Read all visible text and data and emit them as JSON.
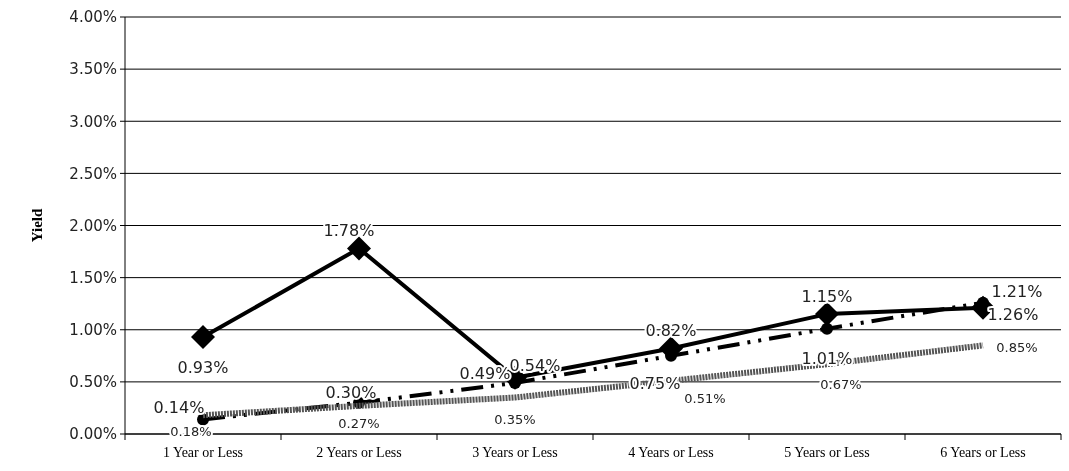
{
  "chart_data": {
    "type": "line",
    "ylabel": "Yield",
    "categories": [
      "1 Year or Less",
      "2 Years or Less",
      "3 Years or Less",
      "4 Years or Less",
      "5 Years or Less",
      "6 Years or Less"
    ],
    "series": [
      {
        "color": "#000000",
        "marker": "diamond",
        "line_style": "solid",
        "values": [
          0.93,
          1.78,
          0.54,
          0.82,
          1.15,
          1.21
        ],
        "value_labels": [
          "0.93%",
          "1.78%",
          "0.54%",
          "0.82%",
          "1.15%",
          "1.21%"
        ]
      },
      {
        "color": "#000000",
        "marker": "circle",
        "line_style": "dashed",
        "values": [
          0.14,
          0.3,
          0.49,
          0.75,
          1.01,
          1.26
        ],
        "value_labels": [
          "0.14%",
          "0.30%",
          "0.49%",
          "0.75%",
          "1.01%",
          "1.26%"
        ]
      },
      {
        "color": "#555555",
        "marker": "none",
        "line_style": "dotted",
        "values": [
          0.18,
          0.27,
          0.35,
          0.51,
          0.67,
          0.85
        ],
        "value_labels": [
          "0.18%",
          "0.27%",
          "0.35%",
          "0.51%",
          "0.67%",
          "0.85%"
        ]
      }
    ],
    "ylim": [
      0,
      4
    ],
    "yticks": [
      {
        "value": 0,
        "label": "0.00%"
      },
      {
        "value": 0.5,
        "label": "0.50%"
      },
      {
        "value": 1,
        "label": "1.00%"
      },
      {
        "value": 1.5,
        "label": "1.50%"
      },
      {
        "value": 2,
        "label": "2.00%"
      },
      {
        "value": 2.5,
        "label": "2.50%"
      },
      {
        "value": 3,
        "label": "3.00%"
      },
      {
        "value": 3.5,
        "label": "3.50%"
      },
      {
        "value": 4,
        "label": "4.00%"
      }
    ],
    "grid": "y"
  }
}
